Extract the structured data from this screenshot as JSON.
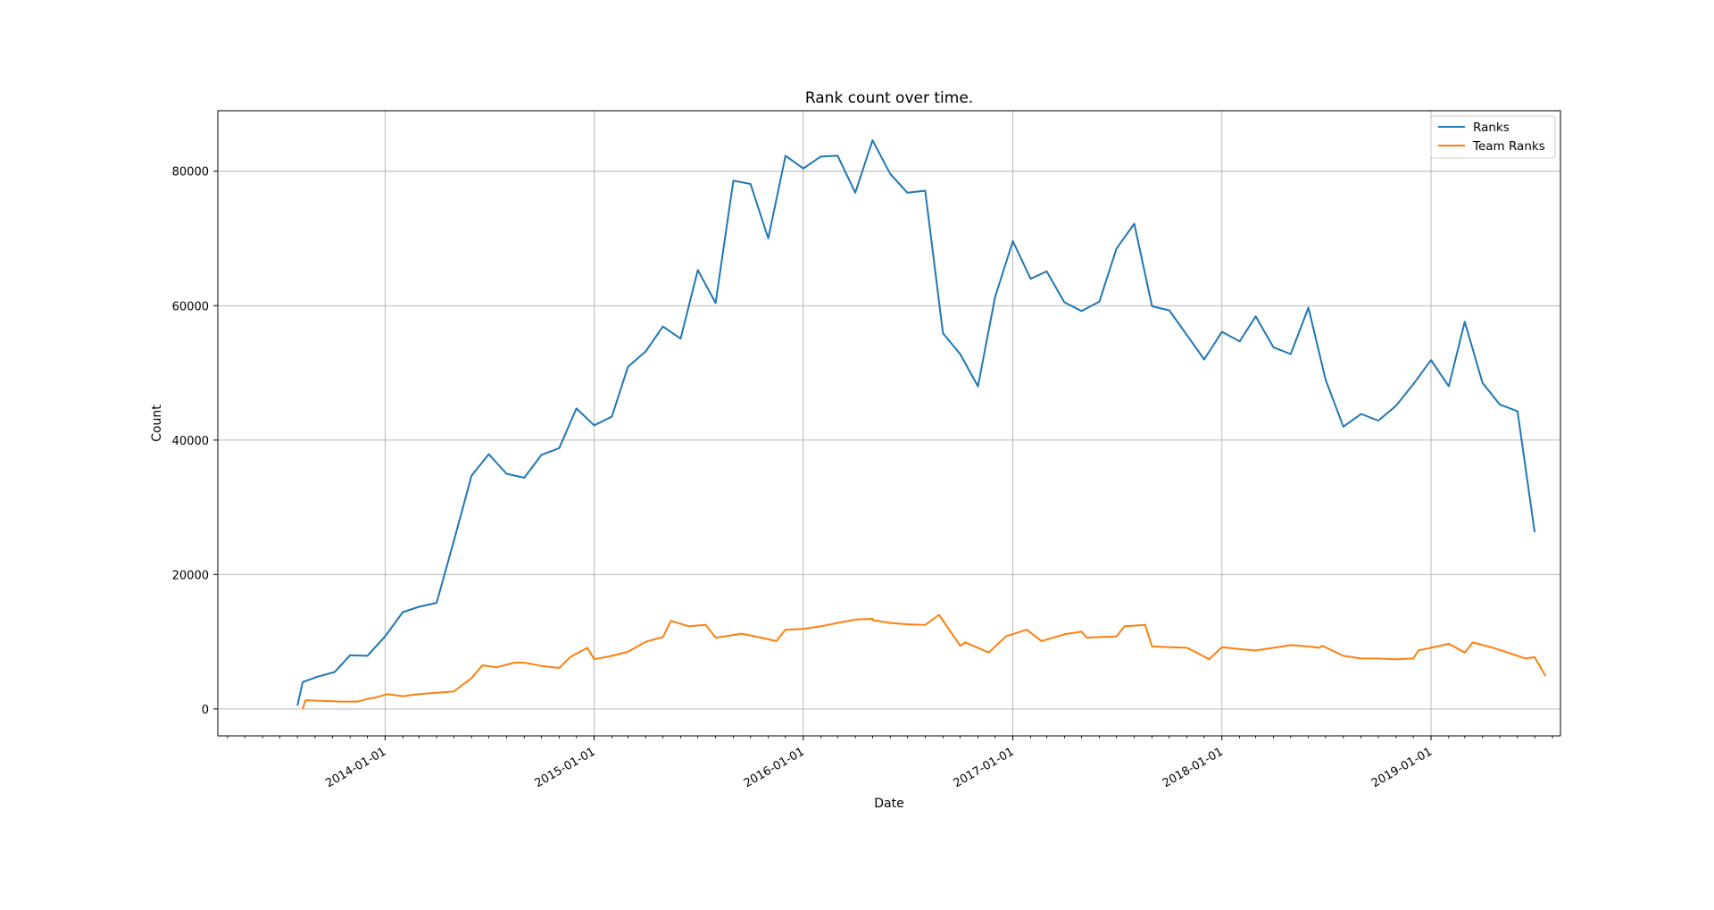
{
  "chart_data": {
    "type": "line",
    "title": "Rank count over time.",
    "xlabel": "Date",
    "ylabel": "Count",
    "xlim": [
      "2013-03-15",
      "2019-08-15"
    ],
    "ylim": [
      -4000,
      89000
    ],
    "yticks": [
      0,
      20000,
      40000,
      60000,
      80000
    ],
    "ytick_labels": [
      "0",
      "20000",
      "40000",
      "60000",
      "80000"
    ],
    "xticks": [
      "2014-01-01",
      "2015-01-01",
      "2016-01-01",
      "2017-01-01",
      "2018-01-01",
      "2019-01-01"
    ],
    "xtick_labels": [
      "2014-01-01",
      "2015-01-01",
      "2016-01-01",
      "2017-01-01",
      "2018-01-01",
      "2019-01-01"
    ],
    "grid": true,
    "legend_position": "top-right",
    "series": [
      {
        "name": "Ranks",
        "color": "#1f77b4",
        "points": [
          [
            "2013-08-01",
            500
          ],
          [
            "2013-08-10",
            4000
          ],
          [
            "2013-09-05",
            4800
          ],
          [
            "2013-10-05",
            5500
          ],
          [
            "2013-11-01",
            8000
          ],
          [
            "2013-12-01",
            7900
          ],
          [
            "2014-01-01",
            10800
          ],
          [
            "2014-02-01",
            14400
          ],
          [
            "2014-03-01",
            15200
          ],
          [
            "2014-04-01",
            15800
          ],
          [
            "2014-05-01",
            25000
          ],
          [
            "2014-06-01",
            34700
          ],
          [
            "2014-07-01",
            37900
          ],
          [
            "2014-08-01",
            35000
          ],
          [
            "2014-09-01",
            34400
          ],
          [
            "2014-10-01",
            37800
          ],
          [
            "2014-11-01",
            38800
          ],
          [
            "2014-12-01",
            44700
          ],
          [
            "2015-01-01",
            42200
          ],
          [
            "2015-02-01",
            43500
          ],
          [
            "2015-03-01",
            50900
          ],
          [
            "2015-04-01",
            53200
          ],
          [
            "2015-05-01",
            56900
          ],
          [
            "2015-06-01",
            55100
          ],
          [
            "2015-07-01",
            65300
          ],
          [
            "2015-08-01",
            60400
          ],
          [
            "2015-09-01",
            78600
          ],
          [
            "2015-10-01",
            78100
          ],
          [
            "2015-11-01",
            70000
          ],
          [
            "2015-12-01",
            82300
          ],
          [
            "2016-01-01",
            80400
          ],
          [
            "2016-02-01",
            82200
          ],
          [
            "2016-03-01",
            82300
          ],
          [
            "2016-04-01",
            76800
          ],
          [
            "2016-05-01",
            84600
          ],
          [
            "2016-06-01",
            79600
          ],
          [
            "2016-07-01",
            76800
          ],
          [
            "2016-08-01",
            77100
          ],
          [
            "2016-09-01",
            55900
          ],
          [
            "2016-10-01",
            52800
          ],
          [
            "2016-11-01",
            48000
          ],
          [
            "2016-12-01",
            61300
          ],
          [
            "2017-01-01",
            69600
          ],
          [
            "2017-02-01",
            64000
          ],
          [
            "2017-03-01",
            65100
          ],
          [
            "2017-04-01",
            60500
          ],
          [
            "2017-05-01",
            59200
          ],
          [
            "2017-06-01",
            60600
          ],
          [
            "2017-07-01",
            68500
          ],
          [
            "2017-08-01",
            72200
          ],
          [
            "2017-09-01",
            59900
          ],
          [
            "2017-10-01",
            59300
          ],
          [
            "2017-11-01",
            55600
          ],
          [
            "2017-12-01",
            52000
          ],
          [
            "2018-01-01",
            56100
          ],
          [
            "2018-02-01",
            54700
          ],
          [
            "2018-03-01",
            58400
          ],
          [
            "2018-04-01",
            53800
          ],
          [
            "2018-05-01",
            52800
          ],
          [
            "2018-06-01",
            59700
          ],
          [
            "2018-07-01",
            49000
          ],
          [
            "2018-08-01",
            42000
          ],
          [
            "2018-09-01",
            43900
          ],
          [
            "2018-10-01",
            42900
          ],
          [
            "2018-11-01",
            45100
          ],
          [
            "2018-12-01",
            48300
          ],
          [
            "2019-01-01",
            51900
          ],
          [
            "2019-02-01",
            48000
          ],
          [
            "2019-03-01",
            57600
          ],
          [
            "2019-04-01",
            48500
          ],
          [
            "2019-05-01",
            45300
          ],
          [
            "2019-06-01",
            44300
          ],
          [
            "2019-07-01",
            26300
          ]
        ]
      },
      {
        "name": "Team Ranks",
        "color": "#ff7f0e",
        "points": [
          [
            "2013-08-10",
            0
          ],
          [
            "2013-08-15",
            1300
          ],
          [
            "2013-09-15",
            1200
          ],
          [
            "2013-10-15",
            1100
          ],
          [
            "2013-11-15",
            1100
          ],
          [
            "2013-12-01",
            1500
          ],
          [
            "2013-12-15",
            1700
          ],
          [
            "2014-01-05",
            2200
          ],
          [
            "2014-02-01",
            1900
          ],
          [
            "2014-03-01",
            2200
          ],
          [
            "2014-04-01",
            2400
          ],
          [
            "2014-05-01",
            2600
          ],
          [
            "2014-06-01",
            4600
          ],
          [
            "2014-06-20",
            6500
          ],
          [
            "2014-07-15",
            6200
          ],
          [
            "2014-08-15",
            6900
          ],
          [
            "2014-09-01",
            6900
          ],
          [
            "2014-10-01",
            6400
          ],
          [
            "2014-11-01",
            6100
          ],
          [
            "2014-11-20",
            7700
          ],
          [
            "2014-12-20",
            9100
          ],
          [
            "2015-01-01",
            7400
          ],
          [
            "2015-02-01",
            7900
          ],
          [
            "2015-03-01",
            8500
          ],
          [
            "2015-04-01",
            10000
          ],
          [
            "2015-05-01",
            10700
          ],
          [
            "2015-05-15",
            13100
          ],
          [
            "2015-06-15",
            12300
          ],
          [
            "2015-07-15",
            12500
          ],
          [
            "2015-08-01",
            10600
          ],
          [
            "2015-09-01",
            11000
          ],
          [
            "2015-09-15",
            11200
          ],
          [
            "2015-10-15",
            10700
          ],
          [
            "2015-11-15",
            10100
          ],
          [
            "2015-12-01",
            11800
          ],
          [
            "2016-01-01",
            11900
          ],
          [
            "2016-02-01",
            12300
          ],
          [
            "2016-03-01",
            12800
          ],
          [
            "2016-04-01",
            13300
          ],
          [
            "2016-05-01",
            13400
          ],
          [
            "2016-05-02",
            13200
          ],
          [
            "2016-06-01",
            12800
          ],
          [
            "2016-07-01",
            12600
          ],
          [
            "2016-08-01",
            12500
          ],
          [
            "2016-08-25",
            14000
          ],
          [
            "2016-10-01",
            9400
          ],
          [
            "2016-10-10",
            9900
          ],
          [
            "2016-11-01",
            9100
          ],
          [
            "2016-11-20",
            8400
          ],
          [
            "2016-12-20",
            10800
          ],
          [
            "2017-01-25",
            11800
          ],
          [
            "2017-02-20",
            10100
          ],
          [
            "2017-04-01",
            11100
          ],
          [
            "2017-05-01",
            11500
          ],
          [
            "2017-05-10",
            10600
          ],
          [
            "2017-06-01",
            10700
          ],
          [
            "2017-07-01",
            10800
          ],
          [
            "2017-07-15",
            12300
          ],
          [
            "2017-08-20",
            12500
          ],
          [
            "2017-09-01",
            9300
          ],
          [
            "2017-10-01",
            9200
          ],
          [
            "2017-11-01",
            9100
          ],
          [
            "2017-11-15",
            8500
          ],
          [
            "2017-12-10",
            7400
          ],
          [
            "2018-01-01",
            9200
          ],
          [
            "2018-02-01",
            8900
          ],
          [
            "2018-03-01",
            8700
          ],
          [
            "2018-04-01",
            9100
          ],
          [
            "2018-05-01",
            9500
          ],
          [
            "2018-06-01",
            9300
          ],
          [
            "2018-06-20",
            9100
          ],
          [
            "2018-06-25",
            9400
          ],
          [
            "2018-08-01",
            7900
          ],
          [
            "2018-09-01",
            7500
          ],
          [
            "2018-10-01",
            7500
          ],
          [
            "2018-11-01",
            7400
          ],
          [
            "2018-12-01",
            7500
          ],
          [
            "2018-12-10",
            8700
          ],
          [
            "2019-01-01",
            9100
          ],
          [
            "2019-02-01",
            9700
          ],
          [
            "2019-03-01",
            8400
          ],
          [
            "2019-03-15",
            9900
          ],
          [
            "2019-04-15",
            9200
          ],
          [
            "2019-05-15",
            8400
          ],
          [
            "2019-06-15",
            7500
          ],
          [
            "2019-07-01",
            7700
          ],
          [
            "2019-07-20",
            4900
          ]
        ]
      }
    ]
  }
}
